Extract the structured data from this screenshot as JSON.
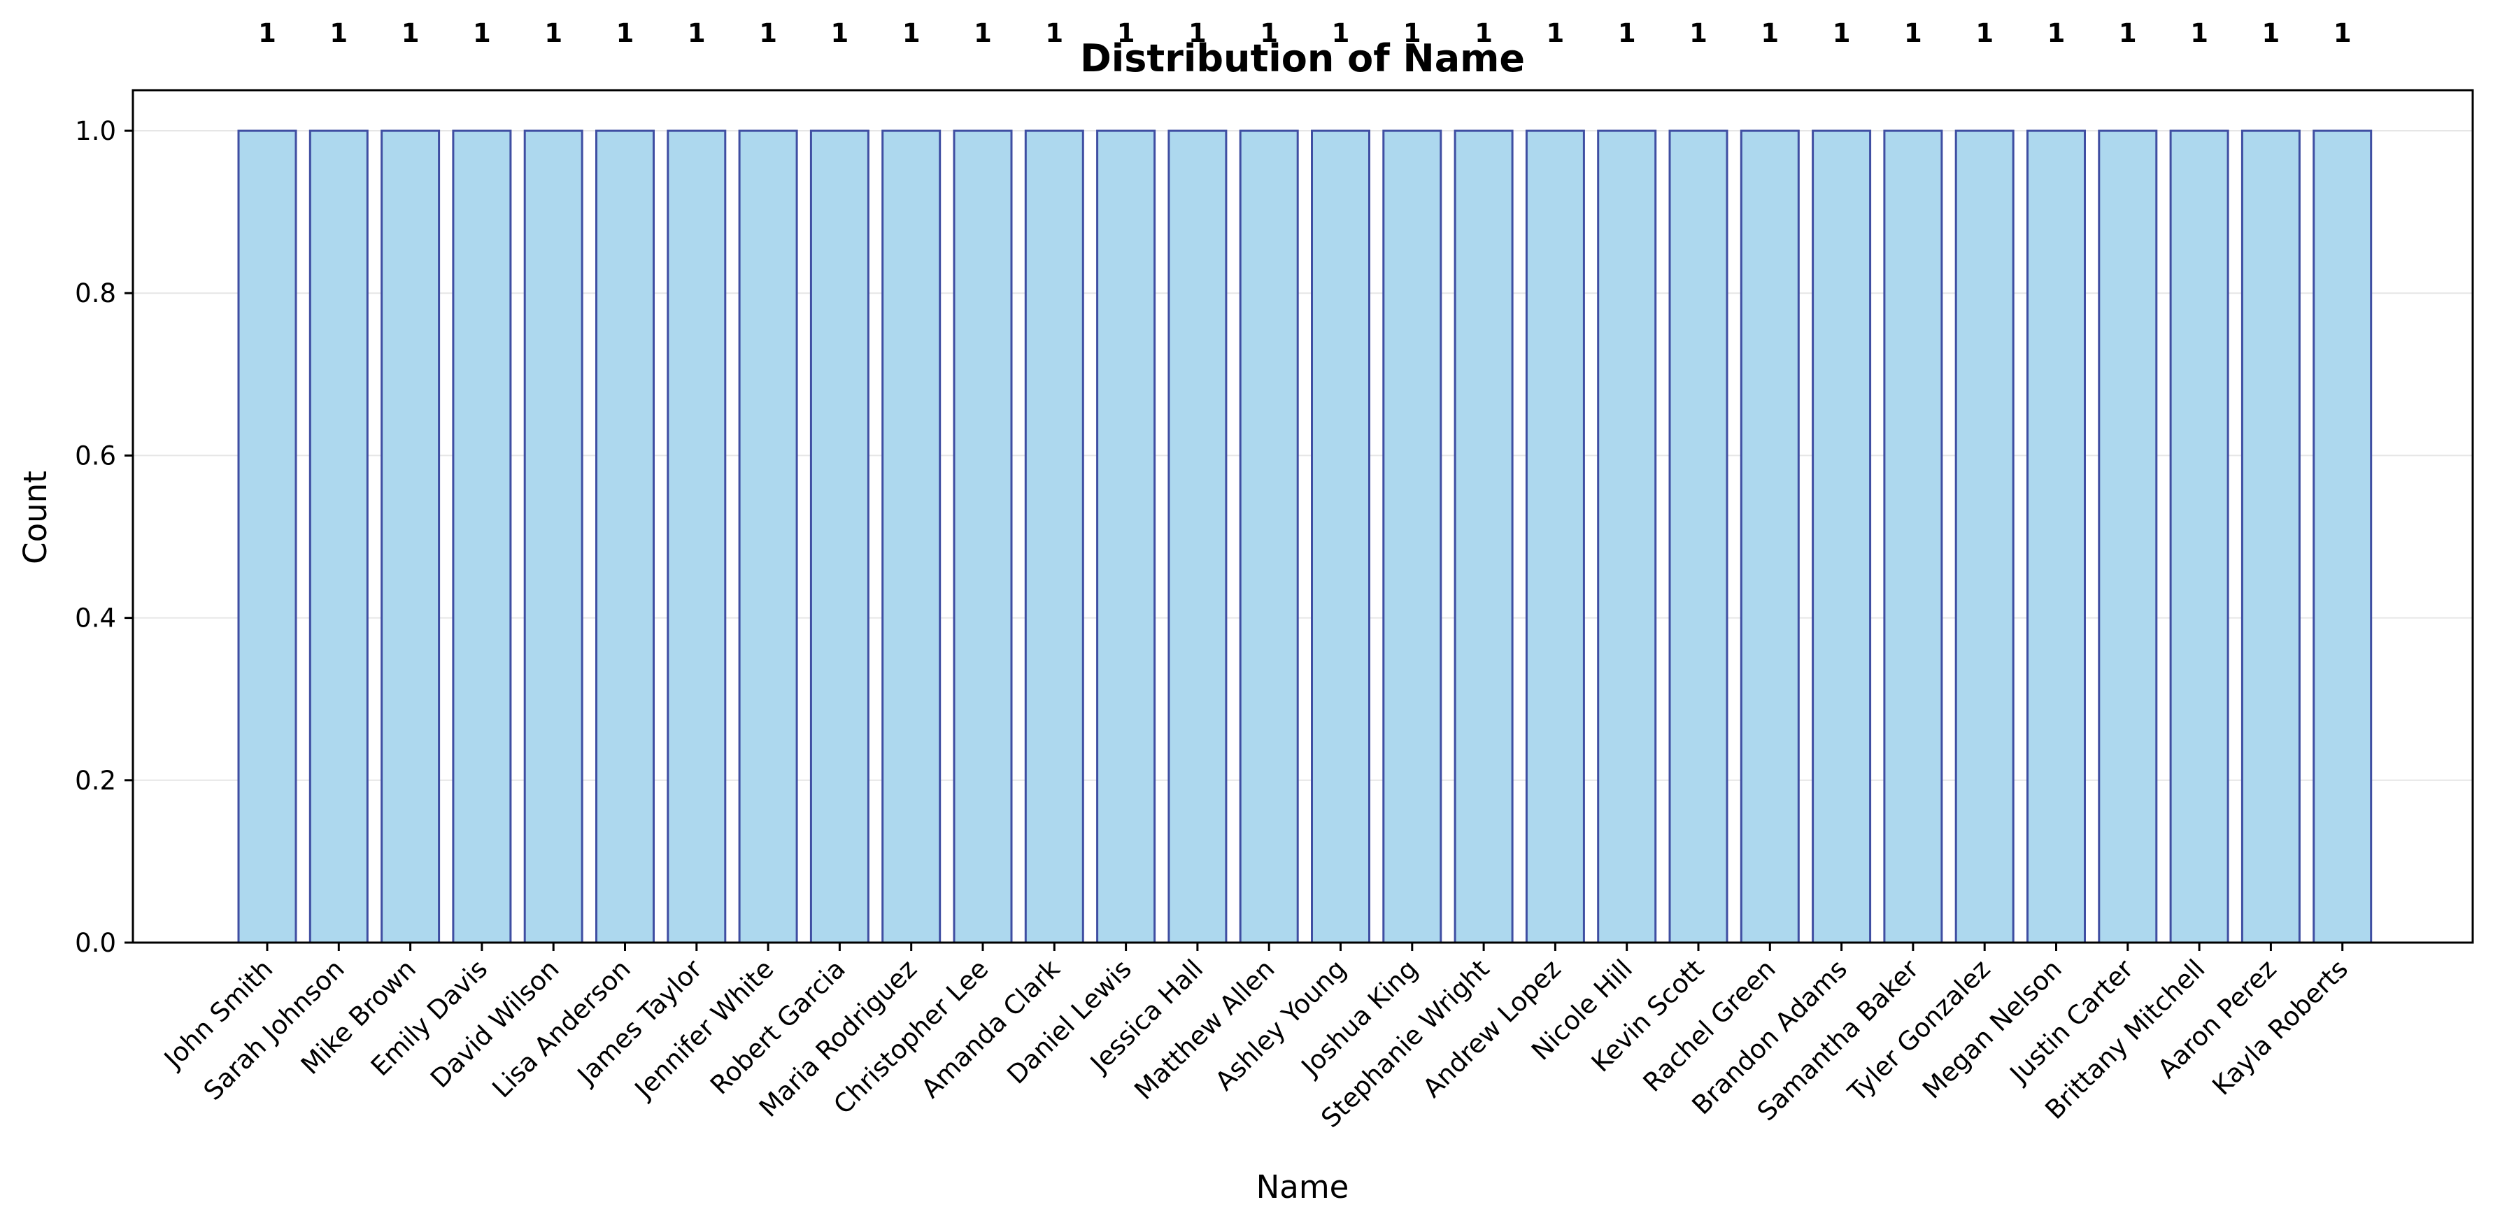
{
  "chart_data": {
    "type": "bar",
    "title": "Distribution of Name",
    "xlabel": "Name",
    "ylabel": "Count",
    "ylim": [
      0,
      1.05
    ],
    "yticks": [
      "0.0",
      "0.2",
      "0.4",
      "0.6",
      "0.8",
      "1.0"
    ],
    "grid": "horizontal",
    "legend": "none",
    "categories": [
      "John Smith",
      "Sarah Johnson",
      "Mike Brown",
      "Emily Davis",
      "David Wilson",
      "Lisa Anderson",
      "James Taylor",
      "Jennifer White",
      "Robert Garcia",
      "Maria Rodriguez",
      "Christopher Lee",
      "Amanda Clark",
      "Daniel Lewis",
      "Jessica Hall",
      "Matthew Allen",
      "Ashley Young",
      "Joshua King",
      "Stephanie Wright",
      "Andrew Lopez",
      "Nicole Hill",
      "Kevin Scott",
      "Rachel Green",
      "Brandon Adams",
      "Samantha Baker",
      "Tyler Gonzalez",
      "Megan Nelson",
      "Justin Carter",
      "Brittany Mitchell",
      "Aaron Perez",
      "Kayla Roberts"
    ],
    "values": [
      1,
      1,
      1,
      1,
      1,
      1,
      1,
      1,
      1,
      1,
      1,
      1,
      1,
      1,
      1,
      1,
      1,
      1,
      1,
      1,
      1,
      1,
      1,
      1,
      1,
      1,
      1,
      1,
      1,
      1
    ],
    "data_labels": [
      "1",
      "1",
      "1",
      "1",
      "1",
      "1",
      "1",
      "1",
      "1",
      "1",
      "1",
      "1",
      "1",
      "1",
      "1",
      "1",
      "1",
      "1",
      "1",
      "1",
      "1",
      "1",
      "1",
      "1",
      "1",
      "1",
      "1",
      "1",
      "1",
      "1"
    ],
    "colors": {
      "bar_fill": "#add8ee",
      "bar_edge": "#3f4ea2",
      "grid": "#e6e6e6",
      "axis": "#000000"
    }
  }
}
